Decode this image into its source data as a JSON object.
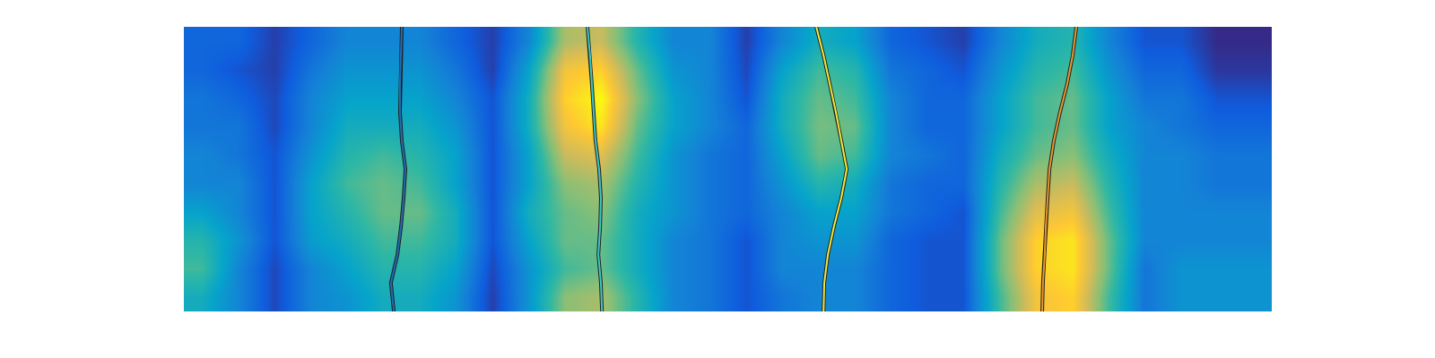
{
  "chart_data": {
    "type": "heatmap",
    "tick_labels": false,
    "grid": false,
    "xlim": [
      0,
      30
    ],
    "ylim": [
      0,
      10
    ],
    "x": [
      0.5,
      1.5,
      2.5,
      3.5,
      4.5,
      5.5,
      6.5,
      7.5,
      8.5,
      9.5,
      10.5,
      11.5,
      12.5,
      13.5,
      14.5,
      15.5,
      16.5,
      17.5,
      18.5,
      19.5,
      20.5,
      21.5,
      22.5,
      23.5,
      24.5,
      25.5,
      26.5,
      27.5,
      28.5,
      29.5
    ],
    "y": [
      0.5,
      1.5,
      2.5,
      3.5,
      4.5,
      5.5,
      6.5,
      7.5,
      8.5,
      9.5
    ],
    "cells": [
      [
        0.2,
        0.2,
        0.1,
        0.2,
        0.3,
        0.3,
        0.3,
        0.2,
        0.1,
        0.3,
        0.7,
        0.75,
        0.5,
        0.3,
        0.3,
        0.1,
        0.3,
        0.45,
        0.4,
        0.2,
        0.15,
        0.1,
        0.3,
        0.45,
        0.5,
        0.3,
        0.15,
        0.15,
        0.05,
        0.05
      ],
      [
        0.2,
        0.15,
        0.1,
        0.25,
        0.35,
        0.35,
        0.35,
        0.25,
        0.1,
        0.4,
        0.85,
        0.9,
        0.6,
        0.35,
        0.3,
        0.12,
        0.4,
        0.55,
        0.5,
        0.25,
        0.2,
        0.15,
        0.35,
        0.5,
        0.55,
        0.35,
        0.2,
        0.2,
        0.08,
        0.08
      ],
      [
        0.25,
        0.2,
        0.12,
        0.3,
        0.4,
        0.4,
        0.4,
        0.3,
        0.15,
        0.45,
        0.9,
        1.0,
        0.65,
        0.4,
        0.3,
        0.15,
        0.45,
        0.6,
        0.55,
        0.3,
        0.2,
        0.2,
        0.4,
        0.55,
        0.6,
        0.4,
        0.25,
        0.25,
        0.15,
        0.15
      ],
      [
        0.25,
        0.25,
        0.12,
        0.3,
        0.45,
        0.45,
        0.45,
        0.35,
        0.15,
        0.45,
        0.85,
        0.95,
        0.6,
        0.4,
        0.3,
        0.2,
        0.45,
        0.62,
        0.6,
        0.3,
        0.2,
        0.2,
        0.4,
        0.55,
        0.6,
        0.4,
        0.3,
        0.25,
        0.2,
        0.2
      ],
      [
        0.3,
        0.25,
        0.15,
        0.35,
        0.5,
        0.55,
        0.5,
        0.4,
        0.15,
        0.4,
        0.75,
        0.8,
        0.55,
        0.35,
        0.25,
        0.2,
        0.4,
        0.6,
        0.55,
        0.3,
        0.25,
        0.2,
        0.45,
        0.6,
        0.65,
        0.45,
        0.3,
        0.3,
        0.25,
        0.25
      ],
      [
        0.3,
        0.3,
        0.15,
        0.4,
        0.55,
        0.6,
        0.55,
        0.4,
        0.15,
        0.4,
        0.65,
        0.7,
        0.5,
        0.35,
        0.25,
        0.2,
        0.35,
        0.5,
        0.45,
        0.25,
        0.2,
        0.2,
        0.5,
        0.7,
        0.75,
        0.5,
        0.3,
        0.3,
        0.25,
        0.25
      ],
      [
        0.4,
        0.3,
        0.15,
        0.4,
        0.5,
        0.6,
        0.6,
        0.45,
        0.15,
        0.45,
        0.6,
        0.65,
        0.45,
        0.35,
        0.25,
        0.2,
        0.3,
        0.4,
        0.4,
        0.25,
        0.2,
        0.15,
        0.55,
        0.8,
        0.85,
        0.55,
        0.3,
        0.3,
        0.3,
        0.3
      ],
      [
        0.5,
        0.35,
        0.15,
        0.38,
        0.45,
        0.55,
        0.55,
        0.45,
        0.15,
        0.4,
        0.6,
        0.6,
        0.45,
        0.3,
        0.25,
        0.15,
        0.3,
        0.35,
        0.35,
        0.2,
        0.15,
        0.15,
        0.6,
        0.9,
        0.95,
        0.6,
        0.3,
        0.3,
        0.3,
        0.3
      ],
      [
        0.55,
        0.3,
        0.12,
        0.3,
        0.4,
        0.5,
        0.5,
        0.4,
        0.12,
        0.35,
        0.55,
        0.6,
        0.45,
        0.3,
        0.25,
        0.15,
        0.3,
        0.3,
        0.3,
        0.2,
        0.15,
        0.15,
        0.6,
        0.9,
        0.95,
        0.6,
        0.25,
        0.35,
        0.35,
        0.35
      ],
      [
        0.45,
        0.3,
        0.12,
        0.3,
        0.35,
        0.45,
        0.45,
        0.35,
        0.1,
        0.35,
        0.65,
        0.7,
        0.5,
        0.3,
        0.25,
        0.15,
        0.25,
        0.3,
        0.3,
        0.2,
        0.15,
        0.15,
        0.55,
        0.85,
        0.9,
        0.55,
        0.25,
        0.35,
        0.35,
        0.35
      ]
    ],
    "series": [
      {
        "type": "line",
        "color": "#1f6db5",
        "x": [
          6.01,
          5.99,
          5.96,
          5.96,
          6.01,
          6.11,
          6.06,
          5.99,
          5.89,
          5.71,
          5.79
        ],
        "y": [
          0,
          1,
          2,
          3,
          4,
          5,
          6,
          7,
          8,
          9,
          10
        ]
      },
      {
        "type": "line",
        "color": "#3cc8c8",
        "x": [
          11.13,
          11.2,
          11.25,
          11.3,
          11.35,
          11.45,
          11.5,
          11.48,
          11.43,
          11.5,
          11.53
        ],
        "y": [
          0,
          1,
          2,
          3,
          4,
          5,
          6,
          7,
          8,
          9,
          10
        ]
      },
      {
        "type": "line",
        "color": "#f2ea3a",
        "x": [
          17.44,
          17.64,
          17.81,
          17.98,
          18.13,
          18.28,
          18.13,
          17.93,
          17.76,
          17.66,
          17.64
        ],
        "y": [
          0,
          1,
          2,
          3,
          4,
          5,
          6,
          7,
          8,
          9,
          10
        ]
      },
      {
        "type": "line",
        "color": "#e8982c",
        "x": [
          24.61,
          24.51,
          24.36,
          24.16,
          23.99,
          23.87,
          23.82,
          23.77,
          23.74,
          23.69,
          23.67
        ],
        "y": [
          0,
          1,
          2,
          3,
          4,
          5,
          6,
          7,
          8,
          9,
          10
        ]
      }
    ]
  }
}
